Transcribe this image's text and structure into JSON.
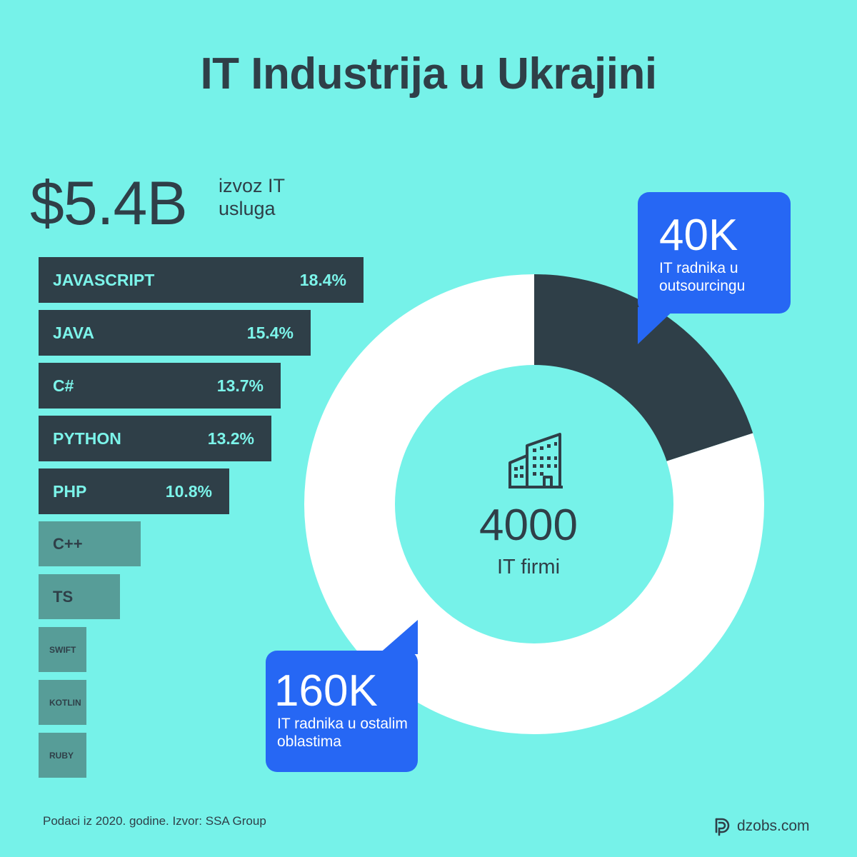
{
  "title": "IT Industrija u Ukrajini",
  "export": {
    "value": "$5.4B",
    "label": "izvoz IT usluga"
  },
  "colors": {
    "background": "#76f2e9",
    "dark": "#2f3f48",
    "muted_bar": "#579d98",
    "accent_blue": "#2667f4",
    "donut_light": "#ffffff"
  },
  "chart_data": [
    {
      "type": "bar",
      "orientation": "horizontal",
      "categories": [
        "JAVASCRIPT",
        "JAVA",
        "C#",
        "PYTHON",
        "PHP",
        "C++",
        "TS",
        "SWIFT",
        "KOTLIN",
        "RUBY"
      ],
      "values": [
        18.4,
        15.4,
        13.7,
        13.2,
        10.8,
        5.8,
        4.6,
        2.7,
        2.7,
        2.7
      ],
      "value_labels": [
        "18.4%",
        "15.4%",
        "13.7%",
        "13.2%",
        "10.8%",
        "",
        "",
        "",
        "",
        ""
      ],
      "highlighted_count": 5
    },
    {
      "type": "pie",
      "style": "donut",
      "slices": [
        {
          "value": 40,
          "label": "40K",
          "description": "IT radnika u outsourcingu",
          "color": "#2f3f48"
        },
        {
          "value": 160,
          "label": "160K",
          "description": "IT radnika u ostalim oblastima",
          "color": "#ffffff"
        }
      ],
      "center": {
        "value": "4000",
        "label": "IT firmi",
        "icon": "building-icon"
      }
    }
  ],
  "callouts": {
    "top": {
      "value": "40K",
      "text": "IT radnika u outsourcingu"
    },
    "bottom": {
      "value": "160K",
      "text": "IT radnika u ostalim oblastima"
    }
  },
  "footer": {
    "source": "Podaci iz 2020. godine. Izvor: SSA Group",
    "brand": "dzobs.com",
    "brand_icon": "dzobs-logo-icon"
  }
}
